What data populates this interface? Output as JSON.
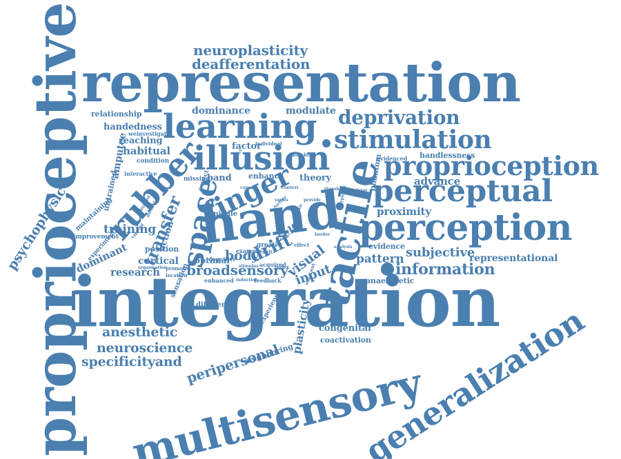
{
  "color": "#4a7fb0",
  "words": [
    "proprioceptive",
    "integration",
    "representation",
    "multisensory",
    "hand",
    "generalization",
    "tactile",
    "learning",
    "perception",
    "perceptual",
    "proprioception",
    "illusion",
    "rubber",
    "stimulation",
    "finger",
    "space",
    "deprivation",
    "transfer",
    "drift",
    "neuroplasticity",
    "deafferentation",
    "information",
    "psychophysic",
    "anesthetic",
    "neuroscience",
    "specificityand",
    "peripersonal",
    "broadsensory",
    "body",
    "visual",
    "input",
    "self",
    "plasticity",
    "subjective",
    "pattern",
    "proximity",
    "advance",
    "representational",
    "training",
    "research",
    "dominant",
    "cortical",
    "handedness",
    "habitual",
    "amputee",
    "reaching",
    "relationship",
    "dominance",
    "modulate",
    "factor",
    "band",
    "theory",
    "enhance",
    "congenital",
    "coactivation",
    "neighboring",
    "optimal",
    "middle",
    "position",
    "action",
    "evidence",
    "handlessness",
    "phantom",
    "anaesthetic",
    "difference",
    "experience",
    "sensation",
    "untrained",
    "maintaining",
    "improvement",
    "experiment",
    "condition",
    "weinvestigate",
    "interactive",
    "missing",
    "aspect",
    "individual",
    "blocking",
    "evidenced",
    "cognitive",
    "example",
    "greater",
    "result",
    "acquired",
    "enhanced",
    "feedback",
    "location",
    "promote",
    "organisation",
    "induction",
    "stimulus",
    "adjacent",
    "effect",
    "index",
    "threshold",
    "stimulator",
    "analysis",
    "varies",
    "provide",
    "typically",
    "obtained",
    "distinct",
    "tapping",
    "slightly",
    "affect",
    "cause",
    "context",
    "select",
    "border",
    "further",
    "simple"
  ]
}
